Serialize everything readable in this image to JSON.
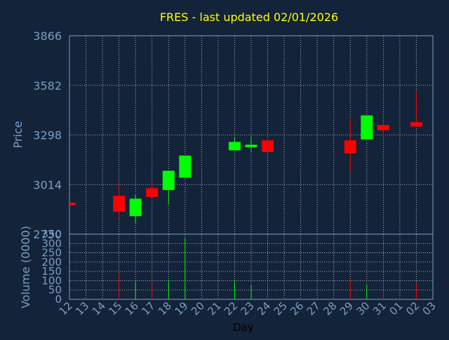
{
  "chart_data": [
    {
      "type": "candlestick",
      "title": "FRES - last updated 02/01/2026",
      "ylabel": "Price",
      "ylim": [
        2730,
        3866
      ],
      "yticks": [
        2730,
        3014,
        3298,
        3582,
        3866
      ],
      "grid": true,
      "x": [
        "12",
        "13",
        "14",
        "15",
        "16",
        "17",
        "18",
        "19",
        "20",
        "21",
        "22",
        "23",
        "24",
        "25",
        "26",
        "27",
        "28",
        "29",
        "30",
        "31",
        "01",
        "02",
        "03"
      ],
      "candles": [
        {
          "x": "12",
          "open": 2910,
          "close": 2895,
          "high": 2910,
          "low": 2895
        },
        {
          "x": "15",
          "open": 2950,
          "close": 2858,
          "high": 3020,
          "low": 2820
        },
        {
          "x": "16",
          "open": 2833,
          "close": 2933,
          "high": 2955,
          "low": 2793
        },
        {
          "x": "17",
          "open": 2993,
          "close": 2943,
          "high": 3025,
          "low": 2943
        },
        {
          "x": "18",
          "open": 2983,
          "close": 3093,
          "high": 3093,
          "low": 2900
        },
        {
          "x": "19",
          "open": 3053,
          "close": 3180,
          "high": 3180,
          "low": 3053
        },
        {
          "x": "22",
          "open": 3210,
          "close": 3258,
          "high": 3285,
          "low": 3210
        },
        {
          "x": "23",
          "open": 3228,
          "close": 3242,
          "high": 3290,
          "low": 3205
        },
        {
          "x": "24",
          "open": 3267,
          "close": 3200,
          "high": 3275,
          "low": 3195
        },
        {
          "x": "29",
          "open": 3267,
          "close": 3192,
          "high": 3385,
          "low": 3087
        },
        {
          "x": "30",
          "open": 3272,
          "close": 3410,
          "high": 3410,
          "low": 3272
        },
        {
          "x": "31",
          "open": 3355,
          "close": 3325,
          "high": 3360,
          "low": 3280
        },
        {
          "x": "02",
          "open": 3371,
          "close": 3346,
          "high": 3543,
          "low": 3346
        }
      ],
      "colors": {
        "up": "#00ff00",
        "down": "#ff0000",
        "title": "#ffff00",
        "axis_text": "#7b9fc3",
        "grid": "#ffffff",
        "background": "#132339"
      }
    },
    {
      "type": "bar",
      "ylabel": "Volume (0000)",
      "xlabel": "Day",
      "ylim": [
        0,
        350
      ],
      "yticks": [
        0,
        50,
        100,
        150,
        200,
        250,
        300,
        350
      ],
      "x_ticks": [
        "12",
        "13",
        "14",
        "15",
        "16",
        "17",
        "18",
        "19",
        "20",
        "21",
        "22",
        "23",
        "24",
        "25",
        "26",
        "27",
        "28",
        "29",
        "30",
        "31",
        "01",
        "02",
        "03"
      ],
      "volumes": [
        {
          "x": "15",
          "value": 140,
          "direction": "down"
        },
        {
          "x": "16",
          "value": 95,
          "direction": "up"
        },
        {
          "x": "17",
          "value": 88,
          "direction": "down"
        },
        {
          "x": "18",
          "value": 105,
          "direction": "up"
        },
        {
          "x": "19",
          "value": 330,
          "direction": "up"
        },
        {
          "x": "22",
          "value": 95,
          "direction": "up"
        },
        {
          "x": "23",
          "value": 75,
          "direction": "up"
        },
        {
          "x": "24",
          "value": 30,
          "direction": "down"
        },
        {
          "x": "29",
          "value": 105,
          "direction": "down"
        },
        {
          "x": "30",
          "value": 75,
          "direction": "up"
        },
        {
          "x": "31",
          "value": 38,
          "direction": "down"
        },
        {
          "x": "02",
          "value": 85,
          "direction": "down"
        }
      ]
    }
  ]
}
